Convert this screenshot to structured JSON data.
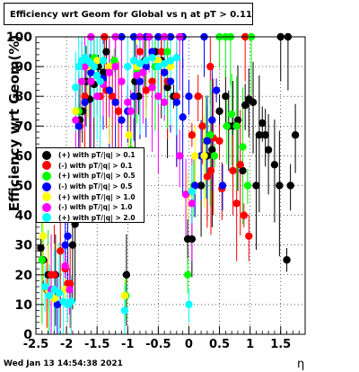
{
  "chart_data": {
    "type": "scatter",
    "title": "Efficiency wrt Geom for Global vs   η at pT > 0.11",
    "xlabel": "η",
    "ylabel": "Efficiency wrt Geom(%)",
    "xlim": [
      -2.5,
      1.9
    ],
    "ylim": [
      0,
      100
    ],
    "x_ticks": [
      "-2.5",
      "-2",
      "-1.5",
      "-1",
      "-0.5",
      "0",
      "0.5",
      "1",
      "1.5"
    ],
    "y_ticks": [
      "0",
      "10",
      "20",
      "30",
      "40",
      "50",
      "60",
      "70",
      "80",
      "90",
      "100"
    ],
    "grid": true,
    "legend_position": "left-middle",
    "series": [
      {
        "name": "(+) with pT/|q| > 0.1",
        "color": "#000000",
        "points": [
          [
            -2.42,
            29
          ],
          [
            -2.38,
            25
          ],
          [
            -2.3,
            20
          ],
          [
            -2.18,
            20
          ],
          [
            -1.9,
            30
          ],
          [
            -1.86,
            37
          ],
          [
            -1.78,
            72
          ],
          [
            -1.74,
            75
          ],
          [
            -1.68,
            85
          ],
          [
            -1.62,
            79
          ],
          [
            -1.55,
            84
          ],
          [
            -1.48,
            90
          ],
          [
            -1.4,
            88
          ],
          [
            -1.35,
            95
          ],
          [
            -1.02,
            20
          ],
          [
            -0.95,
            62
          ],
          [
            -0.88,
            85
          ],
          [
            -0.82,
            80
          ],
          [
            -0.72,
            92
          ],
          [
            -0.55,
            95
          ],
          [
            -0.45,
            92
          ],
          [
            -0.35,
            83
          ],
          [
            -0.25,
            80
          ],
          [
            -0.02,
            32
          ],
          [
            0.05,
            32
          ],
          [
            0.2,
            50
          ],
          [
            0.3,
            60
          ],
          [
            0.38,
            62
          ],
          [
            0.5,
            75
          ],
          [
            0.6,
            80
          ],
          [
            0.65,
            70
          ],
          [
            0.72,
            70
          ],
          [
            0.8,
            72
          ],
          [
            0.88,
            55
          ],
          [
            0.92,
            77
          ],
          [
            0.98,
            79
          ],
          [
            1.05,
            78
          ],
          [
            1.1,
            50
          ],
          [
            1.15,
            67
          ],
          [
            1.2,
            71
          ],
          [
            1.25,
            67
          ],
          [
            1.3,
            62
          ],
          [
            1.4,
            57
          ],
          [
            1.48,
            50
          ],
          [
            1.6,
            25
          ],
          [
            1.66,
            50
          ],
          [
            1.74,
            67
          ],
          [
            1.5,
            100
          ],
          [
            1.62,
            100
          ]
        ]
      },
      {
        "name": "(-) with pT/|q| > 0.1",
        "color": "#ff0000",
        "points": [
          [
            -2.32,
            15
          ],
          [
            -2.25,
            20
          ],
          [
            -2.2,
            20
          ],
          [
            -2.1,
            28
          ],
          [
            -2.02,
            22
          ],
          [
            -1.98,
            17
          ],
          [
            -1.94,
            17
          ],
          [
            -1.78,
            70
          ],
          [
            -1.7,
            80
          ],
          [
            -1.6,
            85
          ],
          [
            -1.45,
            80
          ],
          [
            -1.35,
            82
          ],
          [
            -1.25,
            80
          ],
          [
            -1.15,
            75
          ],
          [
            -0.8,
            95
          ],
          [
            -0.7,
            82
          ],
          [
            -0.6,
            85
          ],
          [
            -0.45,
            95
          ],
          [
            -0.35,
            85
          ],
          [
            -0.2,
            80
          ],
          [
            0.05,
            67
          ],
          [
            0.15,
            80
          ],
          [
            0.22,
            70
          ],
          [
            0.3,
            53
          ],
          [
            0.36,
            55
          ],
          [
            0.4,
            66
          ],
          [
            0.5,
            65
          ],
          [
            0.54,
            49
          ],
          [
            0.72,
            55
          ],
          [
            0.78,
            44
          ],
          [
            0.84,
            57
          ],
          [
            0.9,
            40
          ],
          [
            0.98,
            33
          ],
          [
            0.35,
            90
          ],
          [
            0.92,
            100
          ],
          [
            -1.38,
            100
          ]
        ]
      },
      {
        "name": "(+) with pT/|q| > 0.5",
        "color": "#00ff00",
        "points": [
          [
            -2.4,
            25
          ],
          [
            -2.3,
            15
          ],
          [
            -1.8,
            75
          ],
          [
            -1.75,
            85
          ],
          [
            -1.65,
            90
          ],
          [
            -1.55,
            93
          ],
          [
            -1.3,
            90
          ],
          [
            -1.22,
            92
          ],
          [
            -1.03,
            13
          ],
          [
            -0.95,
            62
          ],
          [
            -0.85,
            88
          ],
          [
            -0.55,
            90
          ],
          [
            -0.35,
            95
          ],
          [
            -0.02,
            20
          ],
          [
            0.08,
            50
          ],
          [
            0.2,
            60
          ],
          [
            0.28,
            65
          ],
          [
            0.35,
            67
          ],
          [
            0.42,
            60
          ],
          [
            0.55,
            50
          ],
          [
            0.62,
            70
          ],
          [
            0.7,
            74
          ],
          [
            0.78,
            70
          ],
          [
            0.88,
            63
          ],
          [
            0.96,
            50
          ],
          [
            0.5,
            100
          ],
          [
            0.6,
            100
          ],
          [
            0.68,
            100
          ],
          [
            1.02,
            100
          ]
        ]
      },
      {
        "name": "(-) with pT/|q| > 0.5",
        "color": "#0000ff",
        "points": [
          [
            -2.3,
            15
          ],
          [
            -2.15,
            10
          ],
          [
            -2.02,
            30
          ],
          [
            -1.98,
            33
          ],
          [
            -1.8,
            70
          ],
          [
            -1.7,
            78
          ],
          [
            -1.6,
            88
          ],
          [
            -1.5,
            92
          ],
          [
            -1.4,
            86
          ],
          [
            -1.3,
            82
          ],
          [
            -1.2,
            78
          ],
          [
            -1.1,
            72
          ],
          [
            -1.0,
            75
          ],
          [
            -0.9,
            80
          ],
          [
            -0.8,
            85
          ],
          [
            -0.7,
            90
          ],
          [
            -0.6,
            95
          ],
          [
            -0.5,
            92
          ],
          [
            -0.4,
            88
          ],
          [
            -0.3,
            85
          ],
          [
            -0.2,
            78
          ],
          [
            -0.1,
            73
          ],
          [
            0.0,
            80
          ],
          [
            0.1,
            50
          ],
          [
            0.2,
            60
          ],
          [
            0.3,
            65
          ],
          [
            0.38,
            72
          ],
          [
            0.45,
            82
          ],
          [
            0.55,
            50
          ],
          [
            -1.1,
            100
          ],
          [
            -0.9,
            100
          ],
          [
            -0.7,
            100
          ],
          [
            -0.5,
            100
          ],
          [
            -0.3,
            100
          ],
          [
            -0.1,
            100
          ],
          [
            0.25,
            100
          ]
        ]
      },
      {
        "name": "(+) with pT/|q| > 1.0",
        "color": "#ffff00",
        "points": [
          [
            -2.38,
            33
          ],
          [
            -2.3,
            15
          ],
          [
            -2.2,
            12
          ],
          [
            -2.02,
            15
          ],
          [
            -1.85,
            75
          ],
          [
            -1.75,
            85
          ],
          [
            -1.65,
            90
          ],
          [
            -1.5,
            92
          ],
          [
            -1.3,
            90
          ],
          [
            -1.05,
            13
          ],
          [
            -0.98,
            67
          ],
          [
            -0.85,
            90
          ],
          [
            -0.7,
            92
          ],
          [
            -0.5,
            92
          ],
          [
            -0.3,
            90
          ],
          [
            -0.02,
            47
          ],
          [
            0.1,
            60
          ],
          [
            0.25,
            60
          ]
        ]
      },
      {
        "name": "(-) with pT/|q| > 1.0",
        "color": "#ff00ff",
        "points": [
          [
            -2.25,
            15
          ],
          [
            -2.02,
            23
          ],
          [
            -1.95,
            15
          ],
          [
            -1.85,
            72
          ],
          [
            -1.75,
            85
          ],
          [
            -1.7,
            90
          ],
          [
            -1.6,
            85
          ],
          [
            -1.5,
            80
          ],
          [
            -1.4,
            84
          ],
          [
            -1.3,
            88
          ],
          [
            -1.2,
            90
          ],
          [
            -1.1,
            85
          ],
          [
            -1.0,
            78
          ],
          [
            -0.95,
            75
          ],
          [
            -0.85,
            87
          ],
          [
            -0.75,
            88
          ],
          [
            -0.6,
            83
          ],
          [
            -0.5,
            80
          ],
          [
            -0.4,
            78
          ],
          [
            -0.15,
            60
          ],
          [
            -0.05,
            47
          ],
          [
            0.05,
            44
          ],
          [
            -1.6,
            100
          ],
          [
            -1.2,
            100
          ],
          [
            -0.8,
            100
          ],
          [
            -0.65,
            100
          ],
          [
            -0.4,
            100
          ],
          [
            -0.15,
            100
          ]
        ]
      },
      {
        "name": "(+) with pT/|q| > 2.0",
        "color": "#00ffff",
        "points": [
          [
            -2.35,
            16
          ],
          [
            -2.28,
            13
          ],
          [
            -2.2,
            15
          ],
          [
            -2.12,
            14
          ],
          [
            -2.05,
            11
          ],
          [
            -1.98,
            10
          ],
          [
            -1.92,
            11
          ],
          [
            -1.85,
            83
          ],
          [
            -1.8,
            90
          ],
          [
            -1.75,
            92
          ],
          [
            -1.7,
            93
          ],
          [
            -1.65,
            92
          ],
          [
            -1.6,
            91
          ],
          [
            -1.55,
            90
          ],
          [
            -1.5,
            87
          ],
          [
            -1.45,
            85
          ],
          [
            -1.4,
            92
          ],
          [
            -1.05,
            8
          ],
          [
            -1.0,
            90
          ],
          [
            -0.9,
            92
          ],
          [
            -0.8,
            91
          ],
          [
            -0.7,
            92
          ],
          [
            -0.6,
            93
          ],
          [
            -0.5,
            90
          ],
          [
            -0.4,
            91
          ],
          [
            -0.3,
            92
          ],
          [
            -0.2,
            93
          ],
          [
            0.0,
            10
          ],
          [
            0.05,
            48
          ]
        ]
      }
    ]
  },
  "footer": {
    "timestamp": "Wed Jan 13 14:54:38 2021"
  }
}
